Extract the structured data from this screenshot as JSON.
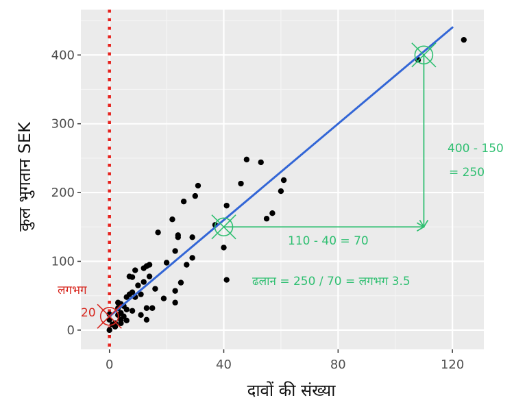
{
  "chart_data": {
    "type": "scatter",
    "xlabel": "दावों की संख्या",
    "ylabel": "कुल भुगतान SEK",
    "xlim": [
      -10,
      131
    ],
    "ylim": [
      -28,
      466
    ],
    "x_ticks": [
      0,
      40,
      80,
      120
    ],
    "x_tick_labels": [
      "0",
      "40",
      "80",
      "120"
    ],
    "y_ticks": [
      0,
      100,
      200,
      300,
      400
    ],
    "y_tick_labels": [
      "0",
      "100",
      "200",
      "300",
      "400"
    ],
    "grid": true,
    "points": [
      [
        0,
        0
      ],
      [
        0,
        15
      ],
      [
        0,
        23
      ],
      [
        1,
        8
      ],
      [
        2,
        5
      ],
      [
        2,
        10
      ],
      [
        3,
        22
      ],
      [
        3,
        32
      ],
      [
        3,
        40
      ],
      [
        4,
        10
      ],
      [
        4,
        15
      ],
      [
        4,
        25
      ],
      [
        4,
        38
      ],
      [
        5,
        20
      ],
      [
        5,
        35
      ],
      [
        6,
        14
      ],
      [
        6,
        30
      ],
      [
        6,
        48
      ],
      [
        7,
        52
      ],
      [
        7,
        78
      ],
      [
        8,
        28
      ],
      [
        8,
        55
      ],
      [
        8,
        77
      ],
      [
        9,
        48
      ],
      [
        9,
        87
      ],
      [
        10,
        65
      ],
      [
        11,
        22
      ],
      [
        11,
        52
      ],
      [
        12,
        70
      ],
      [
        12,
        90
      ],
      [
        13,
        15
      ],
      [
        13,
        32
      ],
      [
        13,
        93
      ],
      [
        14,
        78
      ],
      [
        14,
        95
      ],
      [
        15,
        32
      ],
      [
        16,
        60
      ],
      [
        17,
        142
      ],
      [
        19,
        46
      ],
      [
        20,
        98
      ],
      [
        22,
        161
      ],
      [
        23,
        40
      ],
      [
        23,
        57
      ],
      [
        23,
        115
      ],
      [
        24,
        135
      ],
      [
        24,
        138
      ],
      [
        25,
        69
      ],
      [
        26,
        187
      ],
      [
        27,
        95
      ],
      [
        29,
        105
      ],
      [
        29,
        135
      ],
      [
        30,
        195
      ],
      [
        31,
        210
      ],
      [
        37,
        153
      ],
      [
        40,
        120
      ],
      [
        41,
        73
      ],
      [
        41,
        181
      ],
      [
        46,
        213
      ],
      [
        48,
        248
      ],
      [
        53,
        244
      ],
      [
        55,
        162
      ],
      [
        57,
        170
      ],
      [
        60,
        202
      ],
      [
        61,
        218
      ],
      [
        108,
        393
      ],
      [
        124,
        422
      ]
    ],
    "trend_line": {
      "intercept": 20,
      "slope": 3.5,
      "x_range": [
        0,
        120
      ]
    },
    "reference_line_x": 0,
    "annotations": {
      "intercept_label_1": "लगभग",
      "intercept_label_2": "20",
      "run_label": "110 - 40 = 70",
      "rise_label_1": "400 - 150",
      "rise_label_2": "= 250",
      "slope_label": "ढलान = 250 / 70 = लगभग 3.5"
    },
    "markers": [
      {
        "name": "intercept",
        "x": 0,
        "y": 20,
        "color": "#d7261e"
      },
      {
        "name": "point-a",
        "x": 40,
        "y": 150,
        "color": "#2fbf71"
      },
      {
        "name": "point-b",
        "x": 110,
        "y": 400,
        "color": "#2fbf71"
      }
    ],
    "run_segment": {
      "x0": 40,
      "x1": 110,
      "y": 150
    },
    "rise_segment": {
      "x": 110,
      "y0": 400,
      "y1": 150
    }
  },
  "colors": {
    "panel": "#ebebeb",
    "grid_major": "#ffffff",
    "grid_minor": "#f5f5f5",
    "points": "#000000",
    "trend": "#3366d6",
    "reference": "#e6231e",
    "annot_green": "#2fbf71",
    "annot_red": "#d7261e"
  }
}
